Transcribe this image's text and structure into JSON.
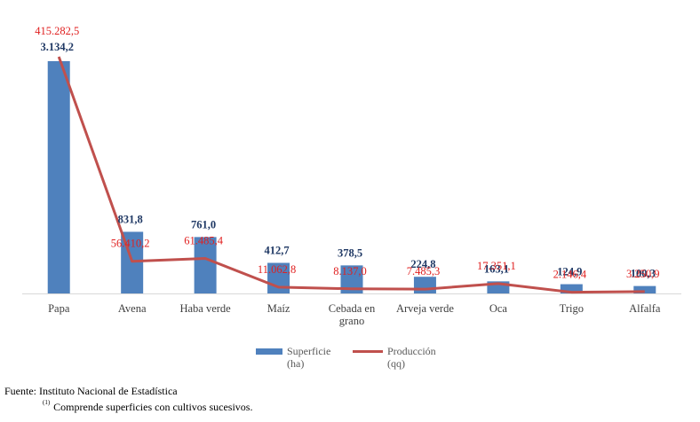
{
  "chart_data": {
    "type": "bar+line",
    "categories": [
      "Papa",
      "Avena",
      "Haba verde",
      "Maíz",
      "Cebada en grano",
      "Arveja verde",
      "Oca",
      "Trigo",
      "Alfalfa"
    ],
    "category_lines": [
      [
        "Papa"
      ],
      [
        "Avena"
      ],
      [
        "Haba verde"
      ],
      [
        "Maíz"
      ],
      [
        "Cebada en",
        "grano"
      ],
      [
        "Arveja verde"
      ],
      [
        "Oca"
      ],
      [
        "Trigo"
      ],
      [
        "Alfalfa"
      ]
    ],
    "series": [
      {
        "name": "Superficie (ha)",
        "name_lines": [
          "Superficie",
          "(ha)"
        ],
        "kind": "bar",
        "color": "#4f81bd",
        "values": [
          3134.2,
          831.8,
          761.0,
          412.7,
          378.5,
          224.8,
          163.1,
          124.9,
          100.3
        ],
        "labels": [
          "3.134,2",
          "831,8",
          "761,0",
          "412,7",
          "378,5",
          "224,8",
          "163,1",
          "124,9",
          "100,3"
        ]
      },
      {
        "name": "Producción (qq)",
        "name_lines": [
          "Producción",
          "(qq)"
        ],
        "kind": "line",
        "color": "#c0504d",
        "values": [
          415282.5,
          56410.2,
          61485.4,
          11062.8,
          8137.0,
          7485.3,
          17351.1,
          2146.4,
          3250.9
        ],
        "labels": [
          "415.282,5",
          "56.410,2",
          "61.485,4",
          "11.062,8",
          "8.137,0",
          "7.485,3",
          "17.351,1",
          "2.146,4",
          "3.250,9"
        ]
      }
    ],
    "legend_position": "bottom",
    "grid": false
  },
  "footer": {
    "source": "Fuente: Instituto Nacional de Estadística",
    "note_marker": "(1)",
    "note_text": "Comprende superficies con cultivos sucesivos."
  }
}
